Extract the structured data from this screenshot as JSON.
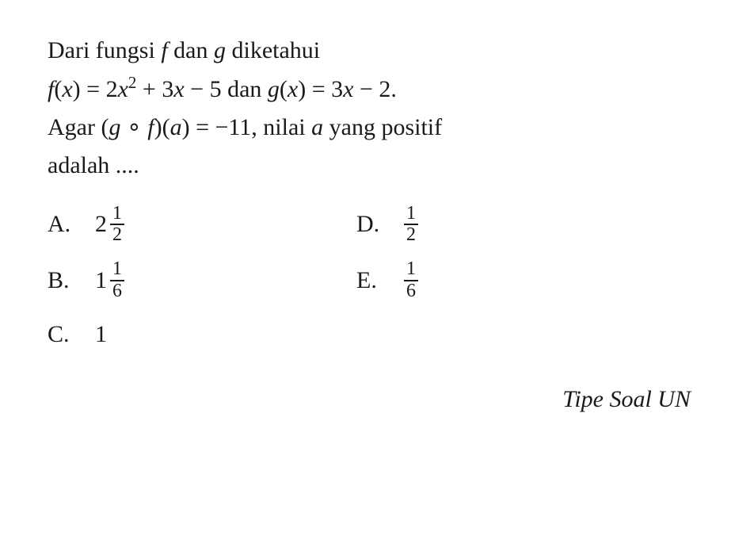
{
  "question": {
    "line1_pre": "Dari fungsi ",
    "line1_f": "f",
    "line1_mid": " dan ",
    "line1_g": "g",
    "line1_post": " diketahui",
    "line2_fx": "f",
    "line2_open": "(",
    "line2_x": "x",
    "line2_close": ") = 2",
    "line2_x2": "x",
    "line2_sq": "2",
    "line2_mid": " + 3",
    "line2_x3": "x",
    "line2_m5": " − 5 dan ",
    "line2_gx": "g",
    "line2_open2": "(",
    "line2_x4": "x",
    "line2_eq2": ") = 3",
    "line2_x5": "x",
    "line2_end": " − 2.",
    "line3_pre": "Agar (",
    "line3_g": "g",
    "line3_comp": " ∘ ",
    "line3_f": "f",
    "line3_mid": ")(",
    "line3_a": "a",
    "line3_eq": ") = −11, nilai ",
    "line3_a2": "a",
    "line3_post": " yang positif",
    "line4": "adalah ...."
  },
  "options": {
    "A": {
      "letter": "A.",
      "whole": "2",
      "num": "1",
      "den": "2"
    },
    "B": {
      "letter": "B.",
      "whole": "1",
      "num": "1",
      "den": "6"
    },
    "C": {
      "letter": "C.",
      "value": "1"
    },
    "D": {
      "letter": "D.",
      "num": "1",
      "den": "2"
    },
    "E": {
      "letter": "E.",
      "num": "1",
      "den": "6"
    }
  },
  "footer": "Tipe Soal UN",
  "colors": {
    "text": "#1a1a1a",
    "background": "#ffffff"
  },
  "fonts": {
    "body_size_pt": 22,
    "fraction_size_pt": 18
  }
}
